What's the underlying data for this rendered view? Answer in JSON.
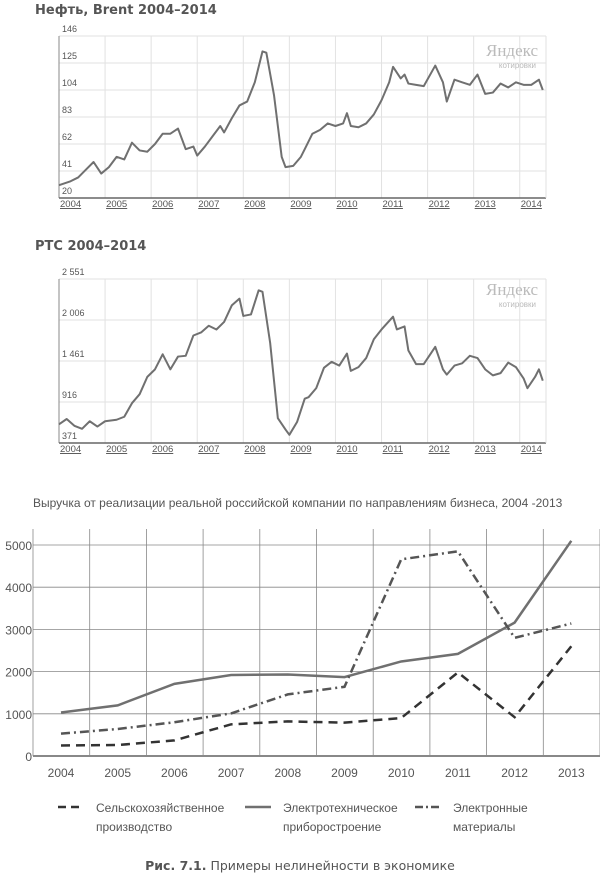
{
  "chart_data": [
    {
      "type": "line",
      "title": "Нефть, Brent 2004–2014",
      "watermark": [
        "Яндекс",
        "котировки"
      ],
      "yticks": [
        "146",
        "125",
        "104",
        "83",
        "62",
        "41",
        "20"
      ],
      "ylim": [
        20,
        146
      ],
      "xticks": [
        "2004",
        "2005",
        "2006",
        "2007",
        "2008",
        "2009",
        "2010",
        "2011",
        "2012",
        "2013",
        "2014"
      ],
      "grid": true,
      "series": [
        {
          "color": "#707070",
          "points": [
            [
              "2004-01",
              30
            ],
            [
              "2004-04",
              33
            ],
            [
              "2004-06",
              36
            ],
            [
              "2004-08",
              42
            ],
            [
              "2004-10",
              48
            ],
            [
              "2004-12",
              39
            ],
            [
              "2005-02",
              44
            ],
            [
              "2005-04",
              52
            ],
            [
              "2005-06",
              50
            ],
            [
              "2005-08",
              63
            ],
            [
              "2005-10",
              57
            ],
            [
              "2005-12",
              56
            ],
            [
              "2006-02",
              62
            ],
            [
              "2006-04",
              70
            ],
            [
              "2006-06",
              70
            ],
            [
              "2006-08",
              74
            ],
            [
              "2006-10",
              58
            ],
            [
              "2006-12",
              60
            ],
            [
              "2007-01",
              53
            ],
            [
              "2007-03",
              60
            ],
            [
              "2007-05",
              68
            ],
            [
              "2007-07",
              76
            ],
            [
              "2007-08",
              71
            ],
            [
              "2007-10",
              82
            ],
            [
              "2007-12",
              92
            ],
            [
              "2008-02",
              95
            ],
            [
              "2008-04",
              110
            ],
            [
              "2008-06",
              134
            ],
            [
              "2008-07",
              133
            ],
            [
              "2008-09",
              100
            ],
            [
              "2008-11",
              52
            ],
            [
              "2008-12",
              44
            ],
            [
              "2009-02",
              45
            ],
            [
              "2009-04",
              52
            ],
            [
              "2009-05",
              58
            ],
            [
              "2009-07",
              70
            ],
            [
              "2009-09",
              73
            ],
            [
              "2009-11",
              78
            ],
            [
              "2010-01",
              76
            ],
            [
              "2010-03",
              78
            ],
            [
              "2010-04",
              86
            ],
            [
              "2010-05",
              76
            ],
            [
              "2010-07",
              75
            ],
            [
              "2010-09",
              78
            ],
            [
              "2010-11",
              85
            ],
            [
              "2011-01",
              96
            ],
            [
              "2011-03",
              110
            ],
            [
              "2011-04",
              122
            ],
            [
              "2011-06",
              113
            ],
            [
              "2011-07",
              116
            ],
            [
              "2011-08",
              109
            ],
            [
              "2011-10",
              108
            ],
            [
              "2011-12",
              107
            ],
            [
              "2012-03",
              123
            ],
            [
              "2012-05",
              110
            ],
            [
              "2012-06",
              95
            ],
            [
              "2012-08",
              112
            ],
            [
              "2012-10",
              110
            ],
            [
              "2012-12",
              108
            ],
            [
              "2013-02",
              116
            ],
            [
              "2013-04",
              101
            ],
            [
              "2013-06",
              102
            ],
            [
              "2013-08",
              109
            ],
            [
              "2013-10",
              106
            ],
            [
              "2013-12",
              110
            ],
            [
              "2014-02",
              108
            ],
            [
              "2014-04",
              108
            ],
            [
              "2014-06",
              112
            ],
            [
              "2014-07",
              104
            ]
          ]
        }
      ]
    },
    {
      "type": "line",
      "title": "РТС 2004–2014",
      "watermark": [
        "Яндекс",
        "котировки"
      ],
      "yticks": [
        "2 551",
        "2 006",
        "1 461",
        "916",
        "371"
      ],
      "ylim": [
        371,
        2551
      ],
      "xticks": [
        "2004",
        "2005",
        "2006",
        "2007",
        "2008",
        "2009",
        "2010",
        "2011",
        "2012",
        "2013",
        "2014"
      ],
      "grid": true,
      "series": [
        {
          "color": "#707070",
          "points": [
            [
              "2004-01",
              620
            ],
            [
              "2004-03",
              690
            ],
            [
              "2004-05",
              600
            ],
            [
              "2004-07",
              560
            ],
            [
              "2004-09",
              660
            ],
            [
              "2004-11",
              590
            ],
            [
              "2005-01",
              660
            ],
            [
              "2005-04",
              680
            ],
            [
              "2005-06",
              720
            ],
            [
              "2005-08",
              900
            ],
            [
              "2005-10",
              1020
            ],
            [
              "2005-12",
              1250
            ],
            [
              "2006-02",
              1350
            ],
            [
              "2006-04",
              1550
            ],
            [
              "2006-06",
              1350
            ],
            [
              "2006-08",
              1520
            ],
            [
              "2006-10",
              1530
            ],
            [
              "2006-12",
              1800
            ],
            [
              "2007-02",
              1840
            ],
            [
              "2007-04",
              1930
            ],
            [
              "2007-06",
              1880
            ],
            [
              "2007-08",
              1980
            ],
            [
              "2007-10",
              2200
            ],
            [
              "2007-12",
              2290
            ],
            [
              "2008-01",
              2060
            ],
            [
              "2008-03",
              2080
            ],
            [
              "2008-05",
              2400
            ],
            [
              "2008-06",
              2380
            ],
            [
              "2008-08",
              1700
            ],
            [
              "2008-10",
              700
            ],
            [
              "2008-12",
              550
            ],
            [
              "2009-01",
              480
            ],
            [
              "2009-03",
              650
            ],
            [
              "2009-05",
              960
            ],
            [
              "2009-06",
              980
            ],
            [
              "2009-08",
              1100
            ],
            [
              "2009-10",
              1370
            ],
            [
              "2009-12",
              1450
            ],
            [
              "2010-02",
              1400
            ],
            [
              "2010-04",
              1560
            ],
            [
              "2010-05",
              1330
            ],
            [
              "2010-07",
              1380
            ],
            [
              "2010-09",
              1500
            ],
            [
              "2010-11",
              1750
            ],
            [
              "2011-01",
              1880
            ],
            [
              "2011-04",
              2050
            ],
            [
              "2011-05",
              1880
            ],
            [
              "2011-07",
              1920
            ],
            [
              "2011-08",
              1600
            ],
            [
              "2011-10",
              1420
            ],
            [
              "2011-12",
              1420
            ],
            [
              "2012-03",
              1650
            ],
            [
              "2012-05",
              1350
            ],
            [
              "2012-06",
              1280
            ],
            [
              "2012-08",
              1400
            ],
            [
              "2012-10",
              1430
            ],
            [
              "2012-12",
              1530
            ],
            [
              "2013-02",
              1500
            ],
            [
              "2013-04",
              1350
            ],
            [
              "2013-06",
              1270
            ],
            [
              "2013-08",
              1300
            ],
            [
              "2013-10",
              1440
            ],
            [
              "2013-12",
              1380
            ],
            [
              "2014-02",
              1230
            ],
            [
              "2014-03",
              1100
            ],
            [
              "2014-05",
              1250
            ],
            [
              "2014-06",
              1350
            ],
            [
              "2014-07",
              1200
            ]
          ]
        }
      ]
    },
    {
      "type": "line",
      "title": "Выручка от реализации реальной российской компании по направлениям бизнеса, 2004 -2013",
      "categories": [
        "2004",
        "2005",
        "2006",
        "2007",
        "2008",
        "2009",
        "2010",
        "2011",
        "2012",
        "2013"
      ],
      "yticks": [
        "5000",
        "4000",
        "3000",
        "2000",
        "1000",
        "0"
      ],
      "ylim": [
        0,
        5400
      ],
      "grid": true,
      "legend": "bottom",
      "series": [
        {
          "name": "Сельскохозяйственное производство",
          "name_lines": [
            "Сельскохозяйственное",
            "производство"
          ],
          "style": "dashed",
          "color": "#333333",
          "values": [
            250,
            260,
            370,
            750,
            820,
            790,
            900,
            1980,
            920,
            2600
          ]
        },
        {
          "name": "Электротехническое приборостроение",
          "name_lines": [
            "Электротехническое",
            "приборостроение"
          ],
          "style": "solid",
          "color": "#707070",
          "values": [
            1030,
            1200,
            1710,
            1920,
            1930,
            1870,
            2240,
            2420,
            3160,
            5100
          ]
        },
        {
          "name": "Электронные материалы",
          "name_lines": [
            "Электронные",
            "материалы"
          ],
          "style": "dash-dot",
          "color": "#555555",
          "values": [
            530,
            640,
            800,
            1010,
            1460,
            1640,
            4660,
            4850,
            2800,
            3140
          ]
        }
      ]
    }
  ],
  "caption": {
    "label": "Рис. 7.1.",
    "text": " Примеры нелинейности в экономике"
  }
}
